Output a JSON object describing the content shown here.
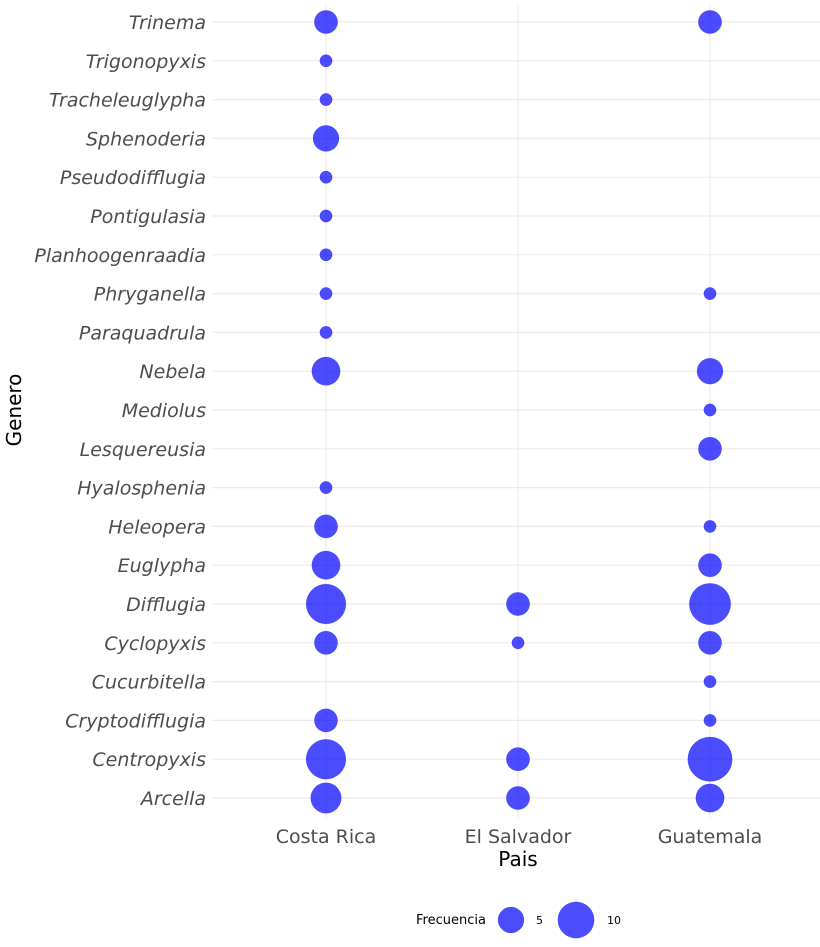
{
  "chart_data": {
    "type": "scatter",
    "title": "",
    "xlabel": "Pais",
    "ylabel": "Genero",
    "x_categories": [
      "Costa Rica",
      "El Salvador",
      "Guatemala"
    ],
    "y_categories": [
      "Arcella",
      "Centropyxis",
      "Cryptodifflugia",
      "Cucurbitella",
      "Cyclopyxis",
      "Difflugia",
      "Euglypha",
      "Heleopera",
      "Hyalosphenia",
      "Lesquereusia",
      "Mediolus",
      "Nebela",
      "Paraquadrula",
      "Phryganella",
      "Planhoogenraadia",
      "Pontigulasia",
      "Pseudodifflugia",
      "Sphenoderia",
      "Tracheleuglypha",
      "Trigonopyxis",
      "Trinema"
    ],
    "points": [
      {
        "pais": "Costa Rica",
        "genero": "Trinema",
        "frecuencia": 4
      },
      {
        "pais": "Costa Rica",
        "genero": "Trigonopyxis",
        "frecuencia": 1
      },
      {
        "pais": "Costa Rica",
        "genero": "Tracheleuglypha",
        "frecuencia": 1
      },
      {
        "pais": "Costa Rica",
        "genero": "Sphenoderia",
        "frecuencia": 5
      },
      {
        "pais": "Costa Rica",
        "genero": "Pseudodifflugia",
        "frecuencia": 1
      },
      {
        "pais": "Costa Rica",
        "genero": "Pontigulasia",
        "frecuencia": 1
      },
      {
        "pais": "Costa Rica",
        "genero": "Planhoogenraadia",
        "frecuencia": 1
      },
      {
        "pais": "Costa Rica",
        "genero": "Phryganella",
        "frecuencia": 1
      },
      {
        "pais": "Costa Rica",
        "genero": "Paraquadrula",
        "frecuencia": 1
      },
      {
        "pais": "Costa Rica",
        "genero": "Nebela",
        "frecuencia": 6
      },
      {
        "pais": "Costa Rica",
        "genero": "Hyalosphenia",
        "frecuencia": 1
      },
      {
        "pais": "Costa Rica",
        "genero": "Heleopera",
        "frecuencia": 4
      },
      {
        "pais": "Costa Rica",
        "genero": "Euglypha",
        "frecuencia": 6
      },
      {
        "pais": "Costa Rica",
        "genero": "Difflugia",
        "frecuencia": 12
      },
      {
        "pais": "Costa Rica",
        "genero": "Cyclopyxis",
        "frecuencia": 4
      },
      {
        "pais": "Costa Rica",
        "genero": "Cryptodifflugia",
        "frecuencia": 4
      },
      {
        "pais": "Costa Rica",
        "genero": "Centropyxis",
        "frecuencia": 12
      },
      {
        "pais": "Costa Rica",
        "genero": "Arcella",
        "frecuencia": 7
      },
      {
        "pais": "El Salvador",
        "genero": "Difflugia",
        "frecuencia": 4
      },
      {
        "pais": "El Salvador",
        "genero": "Cyclopyxis",
        "frecuencia": 1
      },
      {
        "pais": "El Salvador",
        "genero": "Centropyxis",
        "frecuencia": 4
      },
      {
        "pais": "El Salvador",
        "genero": "Arcella",
        "frecuencia": 4
      },
      {
        "pais": "Guatemala",
        "genero": "Trinema",
        "frecuencia": 4
      },
      {
        "pais": "Guatemala",
        "genero": "Phryganella",
        "frecuencia": 1
      },
      {
        "pais": "Guatemala",
        "genero": "Nebela",
        "frecuencia": 5
      },
      {
        "pais": "Guatemala",
        "genero": "Mediolus",
        "frecuencia": 1
      },
      {
        "pais": "Guatemala",
        "genero": "Lesquereusia",
        "frecuencia": 4
      },
      {
        "pais": "Guatemala",
        "genero": "Heleopera",
        "frecuencia": 1
      },
      {
        "pais": "Guatemala",
        "genero": "Euglypha",
        "frecuencia": 4
      },
      {
        "pais": "Guatemala",
        "genero": "Difflugia",
        "frecuencia": 13
      },
      {
        "pais": "Guatemala",
        "genero": "Cyclopyxis",
        "frecuencia": 4
      },
      {
        "pais": "Guatemala",
        "genero": "Cucurbitella",
        "frecuencia": 1
      },
      {
        "pais": "Guatemala",
        "genero": "Cryptodifflugia",
        "frecuencia": 1
      },
      {
        "pais": "Guatemala",
        "genero": "Centropyxis",
        "frecuencia": 15
      },
      {
        "pais": "Guatemala",
        "genero": "Arcella",
        "frecuencia": 6
      }
    ],
    "size_legend": {
      "title": "Frecuencia",
      "breaks": [
        5,
        10
      ]
    },
    "grid": true,
    "legend_position": "bottom",
    "point_color": "#0000ff"
  }
}
